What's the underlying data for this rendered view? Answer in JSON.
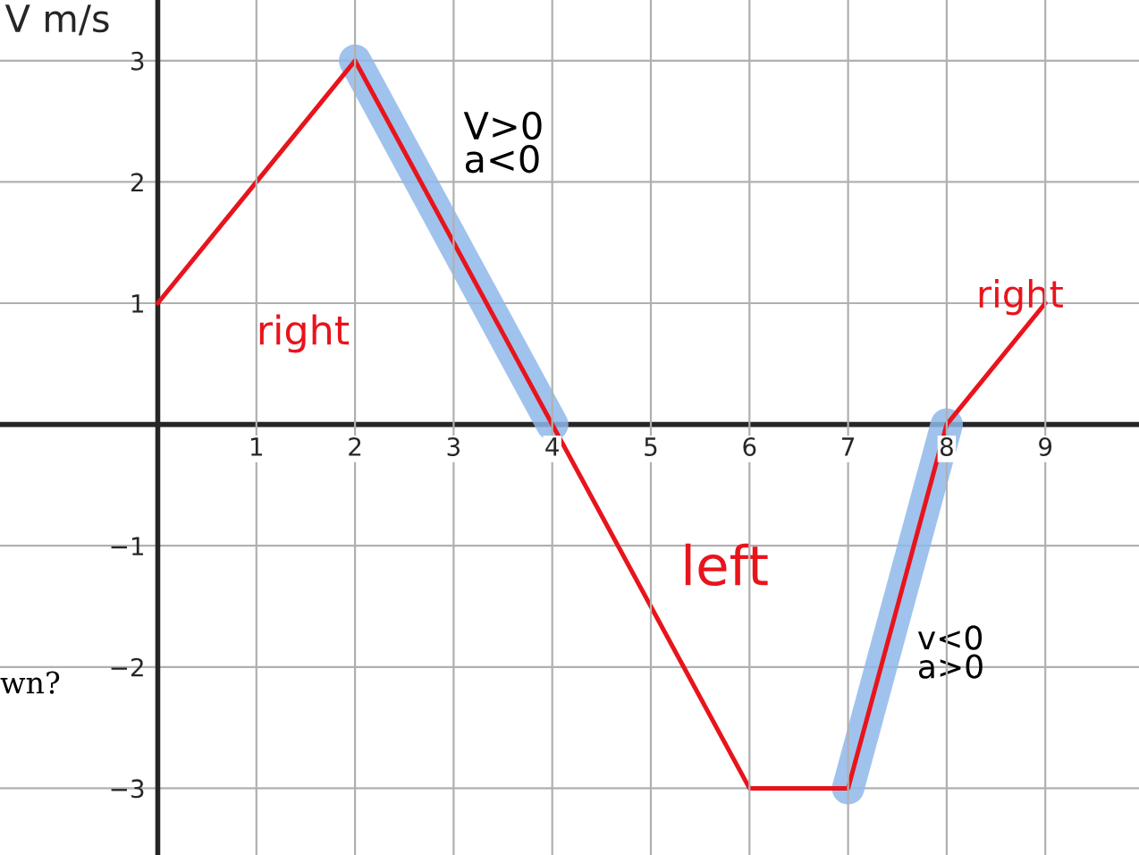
{
  "chart_data": {
    "type": "line",
    "ylabel": "V m/s",
    "series": [
      {
        "color": "#8fb8ea",
        "x": [
          2,
          4
        ],
        "values": [
          3,
          0
        ]
      },
      {
        "color": "#8fb8ea",
        "x": [
          7,
          8
        ],
        "values": [
          -3,
          0
        ]
      },
      {
        "color": "#e8141c",
        "x": [
          0,
          2,
          4,
          6,
          7,
          8,
          9
        ],
        "values": [
          1,
          3,
          0,
          -3,
          -3,
          0,
          1
        ]
      }
    ],
    "xlim": [
      -1.6,
      9.95
    ],
    "ylim": [
      -3.55,
      3.5
    ],
    "xticks": [
      1,
      2,
      3,
      4,
      5,
      6,
      7,
      8,
      9
    ],
    "yticks": [
      {
        "value": -3,
        "label": "−3"
      },
      {
        "value": -2,
        "label": "−2"
      },
      {
        "value": -1,
        "label": "−1"
      },
      1,
      2,
      3
    ],
    "grid": true,
    "annotations": [
      "V>0\na<0",
      "right",
      "left",
      "v<0\na>0",
      "right",
      "wn?"
    ]
  }
}
